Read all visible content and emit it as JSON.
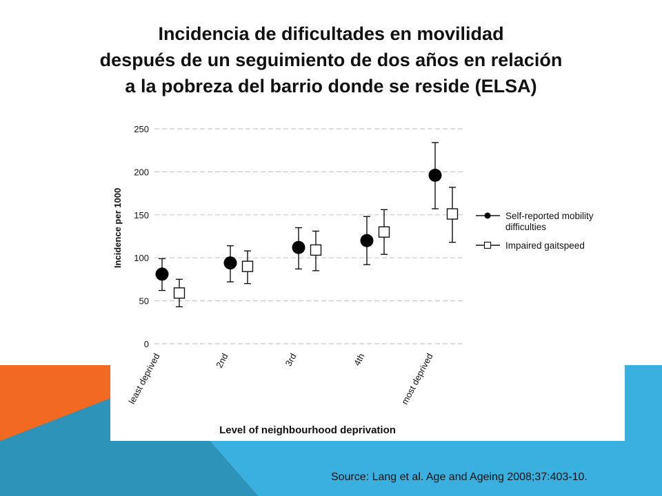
{
  "slide": {
    "title_lines": [
      "Incidencia de dificultades en movilidad",
      "después de un seguimiento de dos años en relación",
      "a la pobreza del barrio donde se reside (ELSA)"
    ],
    "source": "Source: Lang et al.  Age and Ageing 2008;37:403-10.",
    "colors": {
      "orange": "#F26A21",
      "teal": "#2E93B9",
      "blue": "#3AB0E0"
    }
  },
  "chart_data": {
    "type": "scatter",
    "xlabel": "Level of neighbourhood deprivation",
    "ylabel": "Incidence per 1000",
    "ylim": [
      0,
      250
    ],
    "yticks": [
      0,
      50,
      100,
      150,
      200,
      250
    ],
    "grid": true,
    "legend_position": "right",
    "categories": [
      "least deprived",
      "2nd",
      "3rd",
      "4th",
      "most deprived"
    ],
    "series": [
      {
        "name": "Self-reported mobility difficulties",
        "marker": "filled-circle",
        "values": [
          81,
          94,
          112,
          120,
          196
        ],
        "lower": [
          62,
          72,
          87,
          92,
          157
        ],
        "upper": [
          99,
          114,
          135,
          148,
          234
        ]
      },
      {
        "name": "Impaired gaitspeed",
        "marker": "open-square",
        "values": [
          59,
          90,
          109,
          130,
          151
        ],
        "lower": [
          43,
          70,
          85,
          104,
          118
        ],
        "upper": [
          75,
          108,
          131,
          156,
          182
        ]
      }
    ]
  }
}
